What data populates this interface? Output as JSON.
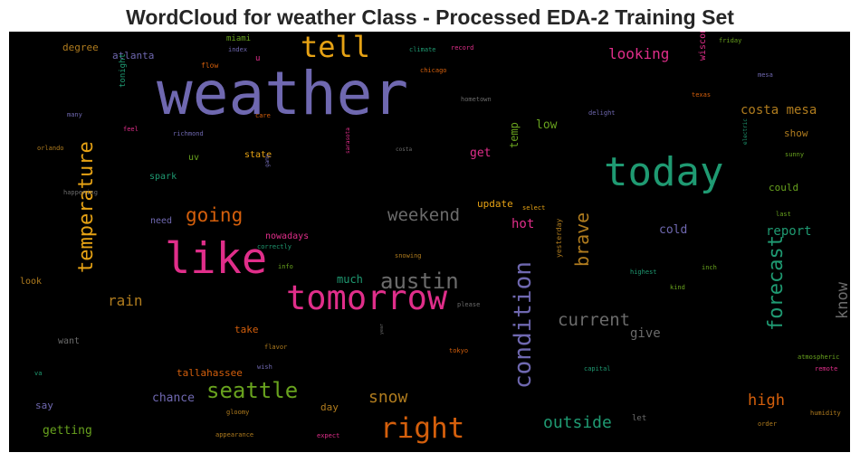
{
  "chart_data": {
    "type": "wordcloud",
    "title": "WordCloud for weather Class - Processed EDA-2 Training Set",
    "background": "#000000",
    "words": [
      {
        "text": "weather",
        "weight": 100,
        "color": "#6f68b0"
      },
      {
        "text": "today",
        "weight": 60,
        "color": "#1f9a72"
      },
      {
        "text": "like",
        "weight": 60,
        "color": "#e02e8a"
      },
      {
        "text": "tomorrow",
        "weight": 50,
        "color": "#e02e8a"
      },
      {
        "text": "tell",
        "weight": 40,
        "color": "#e6a214"
      },
      {
        "text": "right",
        "weight": 38,
        "color": "#d45f0c"
      },
      {
        "text": "condition",
        "weight": 36,
        "color": "#6f68b0"
      },
      {
        "text": "austin",
        "weight": 32,
        "color": "#6b6b6b"
      },
      {
        "text": "temperature",
        "weight": 30,
        "color": "#e6a214"
      },
      {
        "text": "forecast",
        "weight": 30,
        "color": "#1f9a72"
      },
      {
        "text": "seattle",
        "weight": 30,
        "color": "#68a21e"
      },
      {
        "text": "brave",
        "weight": 28,
        "color": "#b07c1e"
      },
      {
        "text": "going",
        "weight": 24,
        "color": "#d45f0c"
      },
      {
        "text": "weekend",
        "weight": 24,
        "color": "#6b6b6b"
      },
      {
        "text": "current",
        "weight": 24,
        "color": "#6b6b6b"
      },
      {
        "text": "know",
        "weight": 22,
        "color": "#6b6b6b"
      },
      {
        "text": "snow",
        "weight": 22,
        "color": "#b07c1e"
      },
      {
        "text": "outside",
        "weight": 22,
        "color": "#1f9a72"
      },
      {
        "text": "high",
        "weight": 20,
        "color": "#d45f0c"
      },
      {
        "text": "looking",
        "weight": 20,
        "color": "#e02e8a"
      },
      {
        "text": "costa mesa",
        "weight": 18,
        "color": "#b07c1e"
      },
      {
        "text": "rain",
        "weight": 18,
        "color": "#b07c1e"
      },
      {
        "text": "report",
        "weight": 16,
        "color": "#1f9a72"
      },
      {
        "text": "hot",
        "weight": 16,
        "color": "#e02e8a"
      },
      {
        "text": "give",
        "weight": 16,
        "color": "#6b6b6b"
      },
      {
        "text": "chance",
        "weight": 14,
        "color": "#6f68b0"
      },
      {
        "text": "low",
        "weight": 14,
        "color": "#68a21e"
      },
      {
        "text": "cold",
        "weight": 14,
        "color": "#6f68b0"
      },
      {
        "text": "get",
        "weight": 14,
        "color": "#e02e8a"
      },
      {
        "text": "much",
        "weight": 13,
        "color": "#1f9a72"
      },
      {
        "text": "getting",
        "weight": 14,
        "color": "#68a21e"
      },
      {
        "text": "temp",
        "weight": 13,
        "color": "#68a21e"
      },
      {
        "text": "update",
        "weight": 12,
        "color": "#e6a214"
      },
      {
        "text": "wisconsin",
        "weight": 12,
        "color": "#e02e8a"
      },
      {
        "text": "atlanta",
        "weight": 12,
        "color": "#6f68b0"
      },
      {
        "text": "degree",
        "weight": 12,
        "color": "#b07c1e"
      },
      {
        "text": "tallahassee",
        "weight": 12,
        "color": "#d45f0c"
      },
      {
        "text": "show",
        "weight": 12,
        "color": "#b07c1e"
      },
      {
        "text": "could",
        "weight": 12,
        "color": "#68a21e"
      },
      {
        "text": "say",
        "weight": 12,
        "color": "#6f68b0"
      },
      {
        "text": "day",
        "weight": 12,
        "color": "#b07c1e"
      },
      {
        "text": "take",
        "weight": 12,
        "color": "#d45f0c"
      },
      {
        "text": "state",
        "weight": 11,
        "color": "#e6a214"
      },
      {
        "text": "uv",
        "weight": 11,
        "color": "#68a21e"
      },
      {
        "text": "spark",
        "weight": 11,
        "color": "#1f9a72"
      },
      {
        "text": "need",
        "weight": 11,
        "color": "#6f68b0"
      },
      {
        "text": "nowadays",
        "weight": 11,
        "color": "#e02e8a"
      },
      {
        "text": "look",
        "weight": 11,
        "color": "#b07c1e"
      },
      {
        "text": "want",
        "weight": 11,
        "color": "#6b6b6b"
      },
      {
        "text": "miami",
        "weight": 10,
        "color": "#68a21e"
      },
      {
        "text": "tonight",
        "weight": 10,
        "color": "#1f9a72"
      },
      {
        "text": "let",
        "weight": 10,
        "color": "#6b6b6b"
      },
      {
        "text": "yesterday",
        "weight": 9,
        "color": "#b07c1e"
      },
      {
        "text": "u",
        "weight": 10,
        "color": "#e02e8a"
      },
      {
        "text": "flow",
        "weight": 9,
        "color": "#d45f0c"
      },
      {
        "text": "index",
        "weight": 8,
        "color": "#6f68b0"
      },
      {
        "text": "climate",
        "weight": 8,
        "color": "#1f9a72"
      },
      {
        "text": "record",
        "weight": 8,
        "color": "#e02e8a"
      },
      {
        "text": "friday",
        "weight": 8,
        "color": "#68a21e"
      },
      {
        "text": "chicago",
        "weight": 8,
        "color": "#d45f0c"
      },
      {
        "text": "texas",
        "weight": 8,
        "color": "#d45f0c"
      },
      {
        "text": "mesa",
        "weight": 8,
        "color": "#6f68b0"
      },
      {
        "text": "hometown",
        "weight": 8,
        "color": "#6b6b6b"
      },
      {
        "text": "many",
        "weight": 8,
        "color": "#6f68b0"
      },
      {
        "text": "care",
        "weight": 8,
        "color": "#d45f0c"
      },
      {
        "text": "delight",
        "weight": 8,
        "color": "#6f68b0"
      },
      {
        "text": "feel",
        "weight": 8,
        "color": "#e02e8a"
      },
      {
        "text": "richmond",
        "weight": 8,
        "color": "#6f68b0"
      },
      {
        "text": "orlando",
        "weight": 8,
        "color": "#b07c1e"
      },
      {
        "text": "sarasota",
        "weight": 7,
        "color": "#e02e8a"
      },
      {
        "text": "costa",
        "weight": 7,
        "color": "#6b6b6b"
      },
      {
        "text": "electric",
        "weight": 7,
        "color": "#1f9a72"
      },
      {
        "text": "sunny",
        "weight": 8,
        "color": "#68a21e"
      },
      {
        "text": "gamy",
        "weight": 6,
        "color": "#6f68b0"
      },
      {
        "text": "happening",
        "weight": 8,
        "color": "#6b6b6b"
      },
      {
        "text": "select",
        "weight": 8,
        "color": "#e6a214"
      },
      {
        "text": "last",
        "weight": 8,
        "color": "#68a21e"
      },
      {
        "text": "correctly",
        "weight": 8,
        "color": "#1f9a72"
      },
      {
        "text": "snowing",
        "weight": 8,
        "color": "#b07c1e"
      },
      {
        "text": "info",
        "weight": 8,
        "color": "#68a21e"
      },
      {
        "text": "highest",
        "weight": 8,
        "color": "#1f9a72"
      },
      {
        "text": "inch",
        "weight": 8,
        "color": "#68a21e"
      },
      {
        "text": "kind",
        "weight": 8,
        "color": "#68a21e"
      },
      {
        "text": "please",
        "weight": 8,
        "color": "#6b6b6b"
      },
      {
        "text": "year",
        "weight": 6,
        "color": "#6b6b6b"
      },
      {
        "text": "flavor",
        "weight": 8,
        "color": "#b07c1e"
      },
      {
        "text": "tokyo",
        "weight": 8,
        "color": "#d45f0c"
      },
      {
        "text": "wish",
        "weight": 8,
        "color": "#6f68b0"
      },
      {
        "text": "atmospheric",
        "weight": 8,
        "color": "#68a21e"
      },
      {
        "text": "capital",
        "weight": 8,
        "color": "#1f9a72"
      },
      {
        "text": "remote",
        "weight": 8,
        "color": "#e02e8a"
      },
      {
        "text": "va",
        "weight": 8,
        "color": "#1f9a72"
      },
      {
        "text": "gloomy",
        "weight": 8,
        "color": "#b07c1e"
      },
      {
        "text": "humidity",
        "weight": 8,
        "color": "#b07c1e"
      },
      {
        "text": "order",
        "weight": 8,
        "color": "#b07c1e"
      },
      {
        "text": "appearance",
        "weight": 8,
        "color": "#b07c1e"
      },
      {
        "text": "expect",
        "weight": 8,
        "color": "#e02e8a"
      }
    ]
  }
}
